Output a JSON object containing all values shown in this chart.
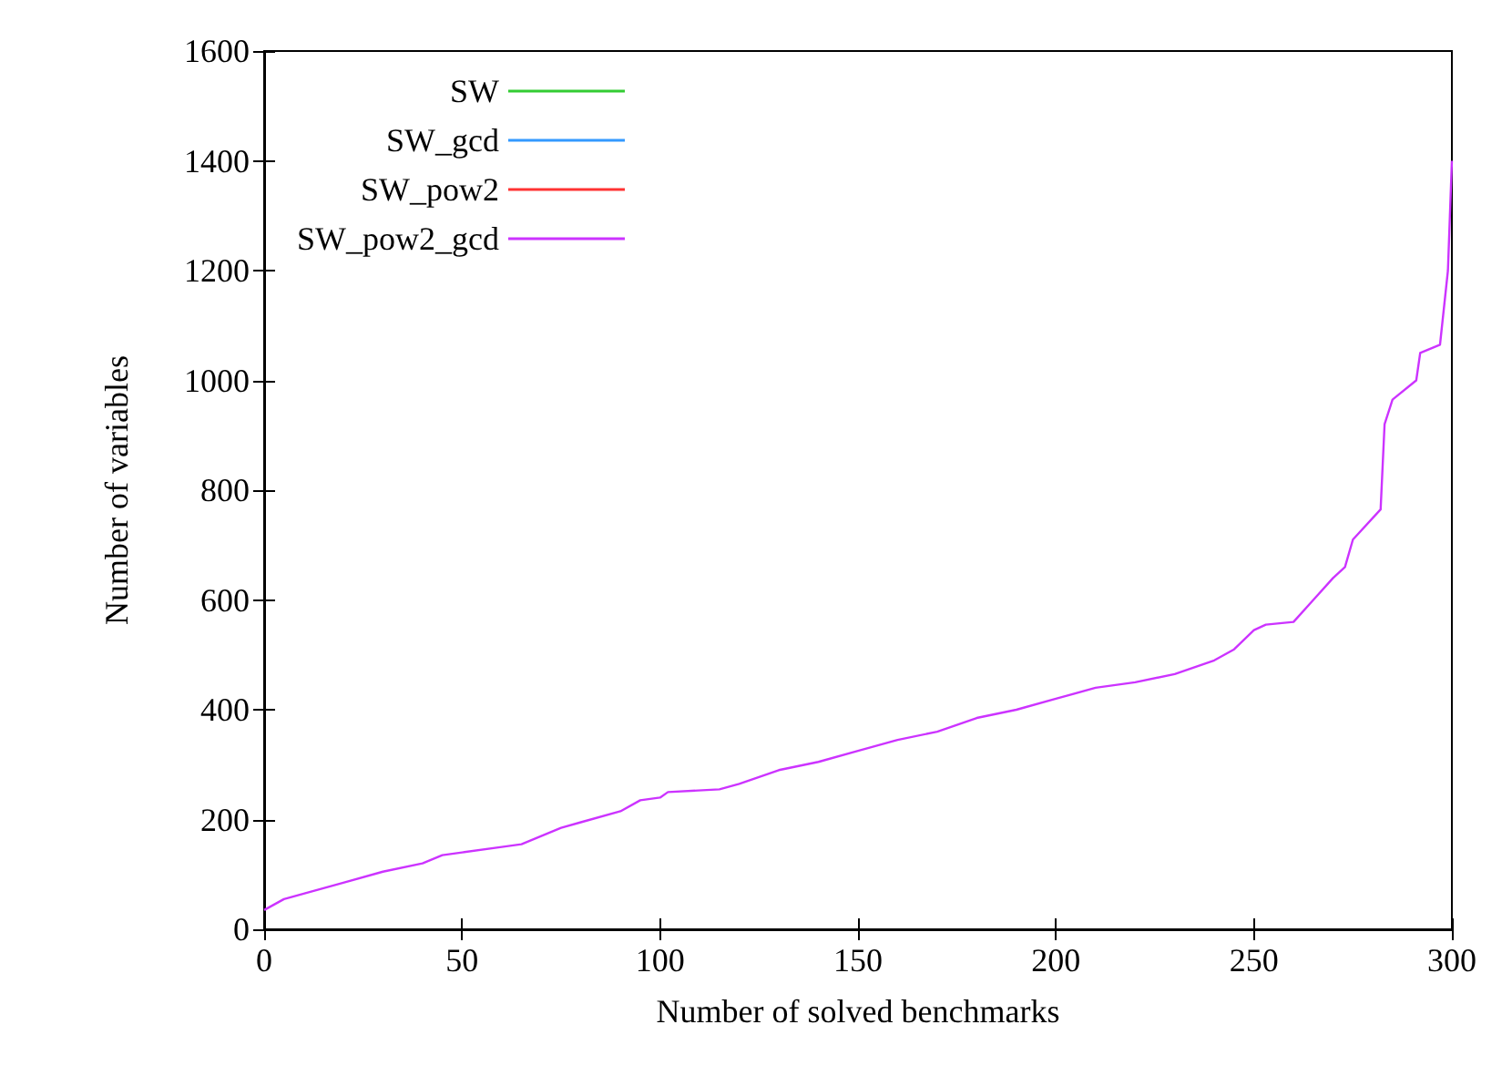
{
  "chart_data": {
    "type": "line",
    "xlabel": "Number of solved benchmarks",
    "ylabel": "Number of variables",
    "x": [
      0,
      5,
      10,
      20,
      30,
      40,
      45,
      50,
      60,
      65,
      70,
      75,
      80,
      90,
      95,
      100,
      102,
      115,
      120,
      130,
      140,
      150,
      160,
      170,
      180,
      190,
      200,
      210,
      220,
      230,
      240,
      245,
      250,
      253,
      260,
      265,
      270,
      273,
      275,
      282,
      283,
      285,
      291,
      292,
      297,
      299,
      300
    ],
    "series": [
      {
        "name": "SW",
        "color": "#33cc33",
        "values": [
          null,
          null,
          null,
          null,
          null,
          null,
          null,
          null,
          null,
          null,
          null,
          null,
          null,
          null,
          null,
          null,
          null,
          null,
          null,
          null,
          null,
          null,
          null,
          null,
          null,
          null,
          null,
          null,
          null,
          null,
          null,
          null,
          null,
          null,
          null,
          null,
          null,
          null,
          null,
          null,
          null,
          null,
          null,
          null,
          null,
          null,
          null
        ]
      },
      {
        "name": "SW_gcd",
        "color": "#3399ff",
        "values": [
          null,
          null,
          null,
          null,
          null,
          null,
          null,
          null,
          null,
          null,
          null,
          null,
          null,
          null,
          null,
          null,
          null,
          null,
          null,
          null,
          null,
          null,
          null,
          null,
          null,
          null,
          null,
          null,
          null,
          null,
          null,
          null,
          null,
          null,
          null,
          null,
          null,
          null,
          null,
          null,
          null,
          null,
          null,
          null,
          null,
          null,
          null
        ]
      },
      {
        "name": "SW_pow2",
        "color": "#ff3333",
        "values": [
          null,
          null,
          null,
          null,
          null,
          null,
          null,
          null,
          null,
          null,
          null,
          null,
          null,
          null,
          null,
          null,
          null,
          null,
          null,
          null,
          null,
          null,
          null,
          null,
          null,
          null,
          null,
          null,
          null,
          null,
          null,
          null,
          null,
          null,
          null,
          null,
          null,
          null,
          null,
          null,
          null,
          null,
          null,
          null,
          null,
          null,
          null
        ]
      },
      {
        "name": "SW_pow2_gcd",
        "color": "#cc33ff",
        "values": [
          35,
          55,
          65,
          85,
          105,
          120,
          135,
          140,
          150,
          155,
          170,
          185,
          195,
          215,
          235,
          240,
          250,
          255,
          265,
          290,
          305,
          325,
          345,
          360,
          385,
          400,
          420,
          440,
          450,
          465,
          490,
          510,
          545,
          555,
          560,
          600,
          640,
          660,
          710,
          765,
          920,
          965,
          1000,
          1050,
          1065,
          1200,
          1400
        ]
      }
    ],
    "xlim": [
      0,
      300
    ],
    "xticks": [
      0,
      50,
      100,
      150,
      200,
      250,
      300
    ],
    "ylim": [
      0,
      1600
    ],
    "yticks": [
      0,
      200,
      400,
      600,
      800,
      1000,
      1200,
      1400,
      1600
    ],
    "grid": false,
    "legend": "top left",
    "marker": "none",
    "line_style": "solid"
  }
}
